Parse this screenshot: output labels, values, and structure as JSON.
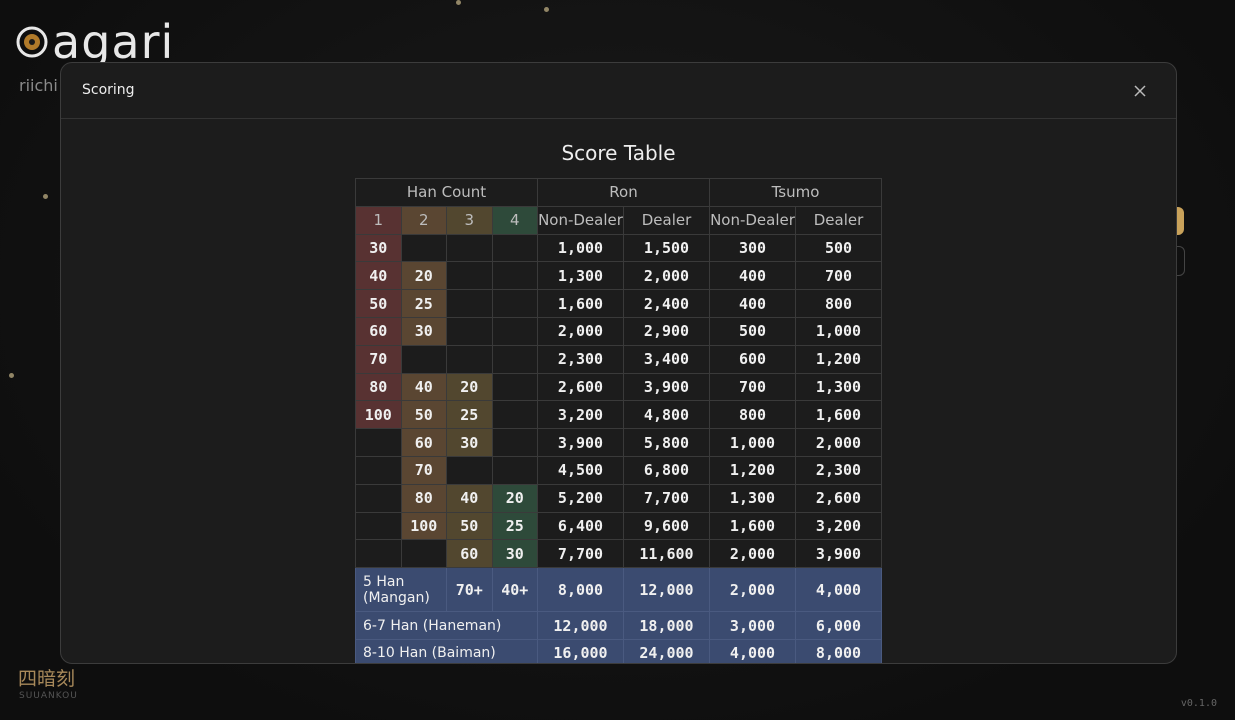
{
  "app": {
    "logo": "agari",
    "tagline": "riichi",
    "yakuman": "四暗刻",
    "yakuman_romaji": "SUUANKOU",
    "version": "v0.1.0"
  },
  "modal": {
    "title": "Scoring"
  },
  "table": {
    "title": "Score Table",
    "header": {
      "han_count": "Han Count",
      "ron": "Ron",
      "tsumo": "Tsumo",
      "han": [
        1,
        2,
        3,
        4
      ],
      "sub": [
        "Non-Dealer",
        "Dealer",
        "Non-Dealer",
        "Dealer"
      ]
    },
    "rows": [
      {
        "han": [
          30,
          null,
          null,
          null
        ],
        "ron": [
          "1,000",
          "1,500"
        ],
        "tsumo": [
          "300",
          "500"
        ]
      },
      {
        "han": [
          40,
          20,
          null,
          null
        ],
        "ron": [
          "1,300",
          "2,000"
        ],
        "tsumo": [
          "400",
          "700"
        ]
      },
      {
        "han": [
          50,
          25,
          null,
          null
        ],
        "ron": [
          "1,600",
          "2,400"
        ],
        "tsumo": [
          "400",
          "800"
        ]
      },
      {
        "han": [
          60,
          30,
          null,
          null
        ],
        "ron": [
          "2,000",
          "2,900"
        ],
        "tsumo": [
          "500",
          "1,000"
        ]
      },
      {
        "han": [
          70,
          null,
          null,
          null
        ],
        "ron": [
          "2,300",
          "3,400"
        ],
        "tsumo": [
          "600",
          "1,200"
        ]
      },
      {
        "han": [
          80,
          40,
          20,
          null
        ],
        "ron": [
          "2,600",
          "3,900"
        ],
        "tsumo": [
          "700",
          "1,300"
        ]
      },
      {
        "han": [
          100,
          50,
          25,
          null
        ],
        "ron": [
          "3,200",
          "4,800"
        ],
        "tsumo": [
          "800",
          "1,600"
        ]
      },
      {
        "han": [
          null,
          60,
          30,
          null
        ],
        "ron": [
          "3,900",
          "5,800"
        ],
        "tsumo": [
          "1,000",
          "2,000"
        ]
      },
      {
        "han": [
          null,
          70,
          null,
          null
        ],
        "ron": [
          "4,500",
          "6,800"
        ],
        "tsumo": [
          "1,200",
          "2,300"
        ]
      },
      {
        "han": [
          null,
          80,
          40,
          20
        ],
        "ron": [
          "5,200",
          "7,700"
        ],
        "tsumo": [
          "1,300",
          "2,600"
        ]
      },
      {
        "han": [
          null,
          100,
          50,
          25
        ],
        "ron": [
          "6,400",
          "9,600"
        ],
        "tsumo": [
          "1,600",
          "3,200"
        ]
      },
      {
        "han": [
          null,
          null,
          60,
          30
        ],
        "ron": [
          "7,700",
          "11,600"
        ],
        "tsumo": [
          "2,000",
          "3,900"
        ]
      }
    ],
    "limits": [
      {
        "label": "5 Han (Mangan)",
        "han": [
          "70+",
          "40+"
        ],
        "ron": [
          "8,000",
          "12,000"
        ],
        "tsumo": [
          "2,000",
          "4,000"
        ]
      },
      {
        "label": "6-7 Han (Haneman)",
        "ron": [
          "12,000",
          "18,000"
        ],
        "tsumo": [
          "3,000",
          "6,000"
        ]
      },
      {
        "label": "8-10 Han (Baiman)",
        "ron": [
          "16,000",
          "24,000"
        ],
        "tsumo": [
          "4,000",
          "8,000"
        ]
      }
    ]
  }
}
